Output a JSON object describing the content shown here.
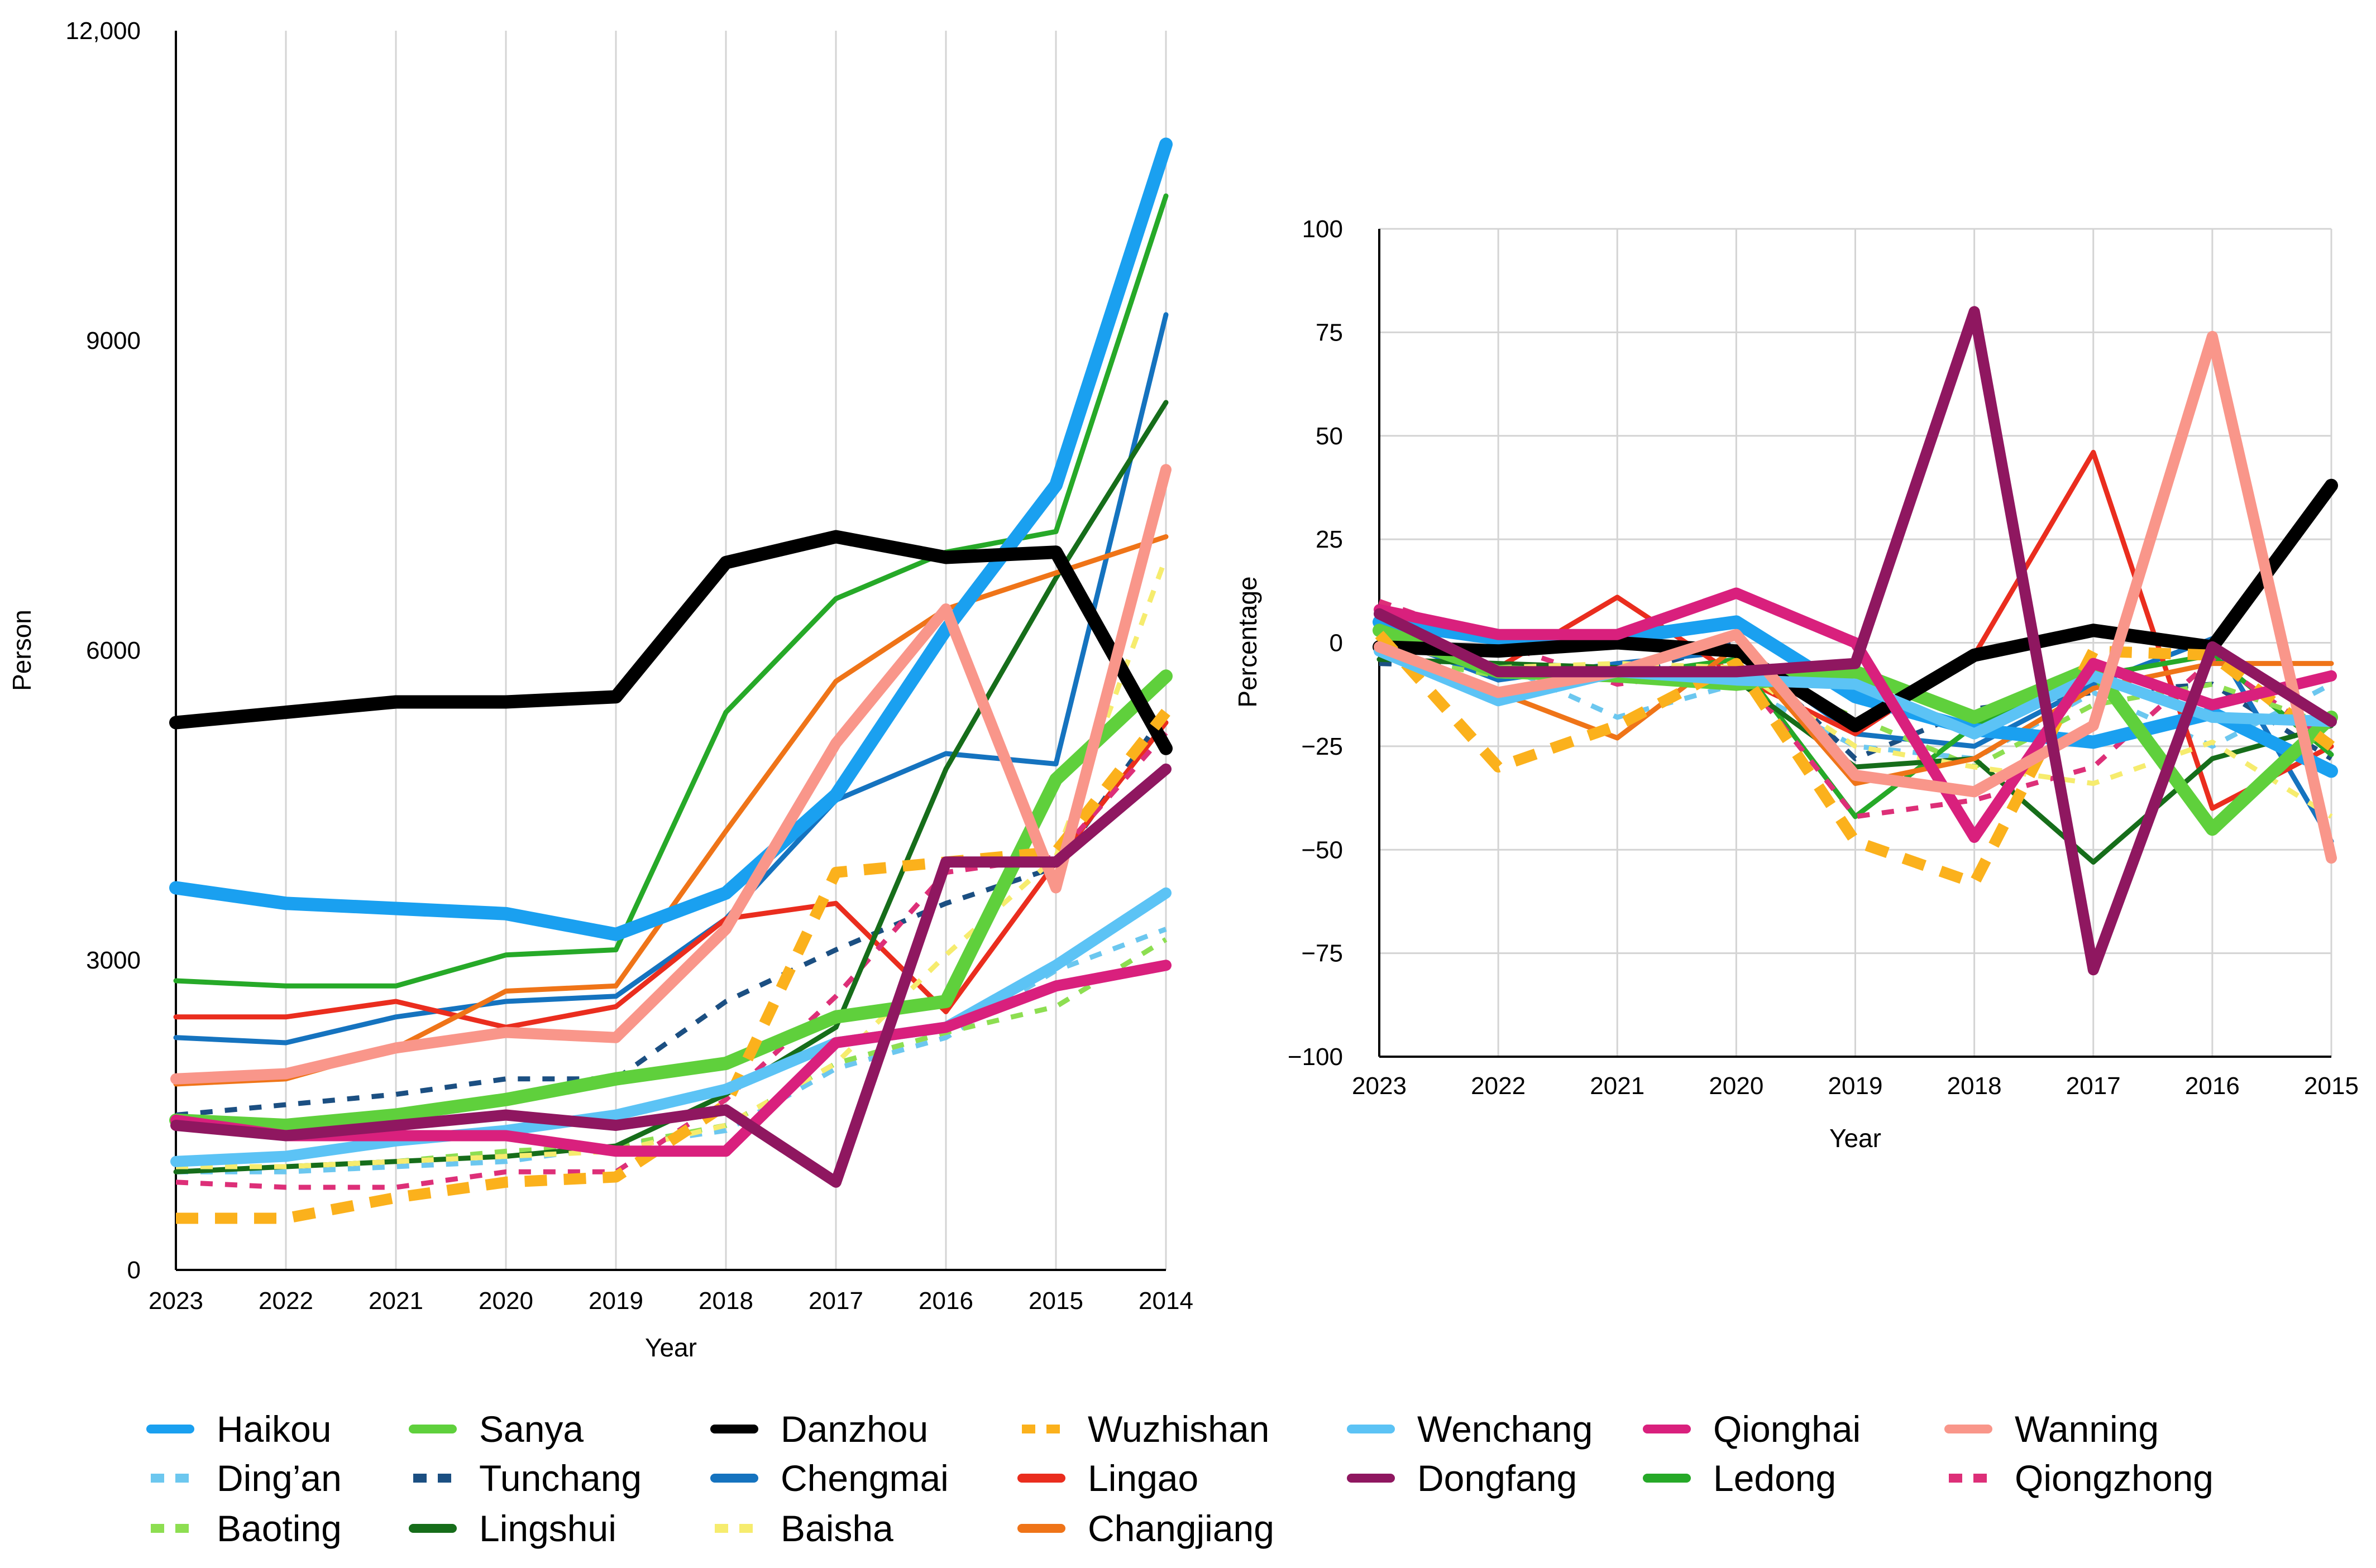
{
  "chart_data": [
    {
      "type": "line",
      "title": "",
      "xlabel": "Year",
      "ylabel": "Person",
      "categories": [
        "2023",
        "2022",
        "2021",
        "2020",
        "2019",
        "2018",
        "2017",
        "2016",
        "2015",
        "2014"
      ],
      "ylim": [
        0,
        12000
      ],
      "yticks": [
        {
          "value": 0,
          "label": "0"
        },
        {
          "value": 3000,
          "label": "3000"
        },
        {
          "value": 6000,
          "label": "6000"
        },
        {
          "value": 9000,
          "label": "9000"
        },
        {
          "value": 12000,
          "label": "12,000"
        }
      ],
      "grid": "vertical",
      "series": [
        {
          "name": "Haikou",
          "values": [
            3700,
            3550,
            3500,
            3450,
            3250,
            3650,
            4600,
            6200,
            7600,
            10900
          ]
        },
        {
          "name": "Sanya",
          "values": [
            1450,
            1400,
            1500,
            1650,
            1850,
            2000,
            2450,
            2600,
            4750,
            5750
          ]
        },
        {
          "name": "Danzhou",
          "values": [
            5300,
            5400,
            5500,
            5500,
            5550,
            6850,
            7100,
            6900,
            6950,
            5050
          ]
        },
        {
          "name": "Wuzhishan",
          "values": [
            500,
            500,
            700,
            850,
            900,
            1600,
            3850,
            3950,
            4050,
            5400
          ]
        },
        {
          "name": "Wenchang",
          "values": [
            1050,
            1100,
            1250,
            1350,
            1500,
            1750,
            2200,
            2350,
            2950,
            3650
          ]
        },
        {
          "name": "Qionghai",
          "values": [
            1450,
            1300,
            1300,
            1300,
            1150,
            1150,
            2200,
            2350,
            2750,
            2950
          ]
        },
        {
          "name": "Wanning",
          "values": [
            1850,
            1900,
            2150,
            2300,
            2250,
            3300,
            5100,
            6400,
            3700,
            7750
          ]
        },
        {
          "name": "Ding'an",
          "values": [
            950,
            950,
            1000,
            1050,
            1200,
            1350,
            1950,
            2250,
            2900,
            3300
          ]
        },
        {
          "name": "Tunchang",
          "values": [
            1500,
            1600,
            1700,
            1850,
            1850,
            2600,
            3100,
            3550,
            3900,
            5400
          ]
        },
        {
          "name": "Chengmai",
          "values": [
            2250,
            2200,
            2450,
            2600,
            2650,
            3400,
            4550,
            5000,
            4900,
            9250
          ]
        },
        {
          "name": "Lingao",
          "values": [
            2450,
            2450,
            2600,
            2350,
            2550,
            3400,
            3550,
            2500,
            3950,
            5300
          ]
        },
        {
          "name": "Dongfang",
          "values": [
            1400,
            1300,
            1400,
            1500,
            1400,
            1550,
            850,
            3950,
            3950,
            4850
          ]
        },
        {
          "name": "Ledong",
          "values": [
            2800,
            2750,
            2750,
            3050,
            3100,
            5400,
            6500,
            6950,
            7150,
            10400
          ]
        },
        {
          "name": "Qiongzhong",
          "values": [
            850,
            800,
            800,
            950,
            950,
            1650,
            2650,
            3850,
            4000,
            5200
          ]
        },
        {
          "name": "Baoting",
          "values": [
            1000,
            1000,
            1050,
            1150,
            1200,
            1400,
            2000,
            2300,
            2550,
            3200
          ]
        },
        {
          "name": "Lingshui",
          "values": [
            950,
            1000,
            1050,
            1100,
            1200,
            1700,
            2350,
            4850,
            6700,
            8400
          ]
        },
        {
          "name": "Baisha",
          "values": [
            1000,
            1000,
            1050,
            1100,
            1150,
            1400,
            2000,
            3050,
            4000,
            6900
          ]
        },
        {
          "name": "Changjiang",
          "values": [
            1800,
            1850,
            2150,
            2700,
            2750,
            4250,
            5700,
            6400,
            6750,
            7100
          ]
        }
      ]
    },
    {
      "type": "line",
      "title": "",
      "xlabel": "Year",
      "ylabel": "Percentage",
      "categories": [
        "2023",
        "2022",
        "2021",
        "2020",
        "2019",
        "2018",
        "2017",
        "2016",
        "2015"
      ],
      "ylim": [
        -100,
        100
      ],
      "yticks": [
        {
          "value": -100,
          "label": "−100"
        },
        {
          "value": -75,
          "label": "−75"
        },
        {
          "value": -50,
          "label": "−50"
        },
        {
          "value": -25,
          "label": "−25"
        },
        {
          "value": 0,
          "label": "0"
        },
        {
          "value": 25,
          "label": "25"
        },
        {
          "value": 50,
          "label": "50"
        },
        {
          "value": 75,
          "label": "75"
        },
        {
          "value": 100,
          "label": "100"
        }
      ],
      "grid": "both",
      "series": [
        {
          "name": "Haikou",
          "values": [
            5,
            1,
            1,
            5,
            -13,
            -21,
            -24,
            -17,
            -31
          ]
        },
        {
          "name": "Sanya",
          "values": [
            3,
            -7,
            -8,
            -10,
            -7,
            -18,
            -6,
            -45,
            -18
          ]
        },
        {
          "name": "Danzhou",
          "values": [
            -1,
            -2,
            0,
            -2,
            -20,
            -3,
            3,
            -1,
            38
          ]
        },
        {
          "name": "Wuzhishan",
          "values": [
            2,
            -30,
            -20,
            -5,
            -48,
            -58,
            -2,
            -3,
            -25
          ]
        },
        {
          "name": "Wenchang",
          "values": [
            -2,
            -14,
            -7,
            -9,
            -10,
            -22,
            -8,
            -18,
            -19
          ]
        },
        {
          "name": "Qionghai",
          "values": [
            8,
            2,
            2,
            12,
            0,
            -47,
            -5,
            -15,
            -8
          ]
        },
        {
          "name": "Wanning",
          "values": [
            -1,
            -12,
            -7,
            2,
            -32,
            -36,
            -20,
            74,
            -52
          ]
        },
        {
          "name": "Ding'an",
          "values": [
            -5,
            -5,
            -18,
            -10,
            -25,
            -28,
            -12,
            -25,
            -10
          ]
        },
        {
          "name": "Tunchang",
          "values": [
            -5,
            -6,
            -8,
            0,
            -28,
            -16,
            -12,
            -10,
            -28
          ]
        },
        {
          "name": "Chengmai",
          "values": [
            2,
            -9,
            -5,
            -2,
            -22,
            -25,
            -10,
            1,
            -48
          ]
        },
        {
          "name": "Lingao",
          "values": [
            0,
            -6,
            11,
            -8,
            -22,
            -3,
            46,
            -40,
            -25
          ]
        },
        {
          "name": "Dongfang",
          "values": [
            7,
            -7,
            -7,
            -7,
            -5,
            80,
            -79,
            -1,
            -19
          ]
        },
        {
          "name": "Ledong",
          "values": [
            2,
            -8,
            -8,
            -4,
            -42,
            -20,
            -8,
            -3,
            -27
          ]
        },
        {
          "name": "Qiongzhong",
          "values": [
            10,
            0,
            -10,
            -6,
            -42,
            -38,
            -30,
            -4,
            -24
          ]
        },
        {
          "name": "Baoting",
          "values": [
            -3,
            -8,
            -9,
            -6,
            -18,
            -30,
            -15,
            -10,
            -20
          ]
        },
        {
          "name": "Lingshui",
          "values": [
            -4,
            -5,
            -6,
            -9,
            -30,
            -28,
            -53,
            -28,
            -20
          ]
        },
        {
          "name": "Baisha",
          "values": [
            0,
            -6,
            -5,
            -6,
            -25,
            -30,
            -34,
            -24,
            -42
          ]
        },
        {
          "name": "Changjiang",
          "values": [
            -1,
            -12,
            -23,
            -1,
            -34,
            -28,
            -11,
            -5,
            -5
          ]
        }
      ]
    }
  ],
  "legend": [
    {
      "name": "Haikou",
      "color": "#1aa0f0",
      "dash": "solid",
      "bold": true
    },
    {
      "name": "Sanya",
      "color": "#5fd03c",
      "dash": "solid",
      "bold": true
    },
    {
      "name": "Danzhou",
      "color": "#000000",
      "dash": "solid",
      "bold": true
    },
    {
      "name": "Wuzhishan",
      "color": "#fbb11c",
      "dash": "dashed",
      "bold": true
    },
    {
      "name": "Wenchang",
      "color": "#5cc3f5",
      "dash": "solid",
      "bold": true
    },
    {
      "name": "Qionghai",
      "color": "#d9207d",
      "dash": "solid",
      "bold": true
    },
    {
      "name": "Wanning",
      "color": "#f9968a",
      "dash": "solid",
      "bold": true
    },
    {
      "name": "Ding’an",
      "color": "#6cc7ef",
      "dash": "dashed",
      "bold": false
    },
    {
      "name": "Tunchang",
      "color": "#1b4f82",
      "dash": "dashed",
      "bold": false
    },
    {
      "name": "Chengmai",
      "color": "#1573bf",
      "dash": "solid",
      "bold": false
    },
    {
      "name": "Lingao",
      "color": "#ea2d1e",
      "dash": "solid",
      "bold": false
    },
    {
      "name": "Dongfang",
      "color": "#8f1760",
      "dash": "solid",
      "bold": true
    },
    {
      "name": "Ledong",
      "color": "#26a928",
      "dash": "solid",
      "bold": false
    },
    {
      "name": "Qiongzhong",
      "color": "#dd2f78",
      "dash": "dashed",
      "bold": false
    },
    {
      "name": "Baoting",
      "color": "#8dde51",
      "dash": "dashed",
      "bold": false
    },
    {
      "name": "Lingshui",
      "color": "#166d1a",
      "dash": "solid",
      "bold": false
    },
    {
      "name": "Baisha",
      "color": "#f6ec6e",
      "dash": "dashed",
      "bold": false
    },
    {
      "name": "Changjiang",
      "color": "#ef7418",
      "dash": "solid",
      "bold": false
    }
  ]
}
